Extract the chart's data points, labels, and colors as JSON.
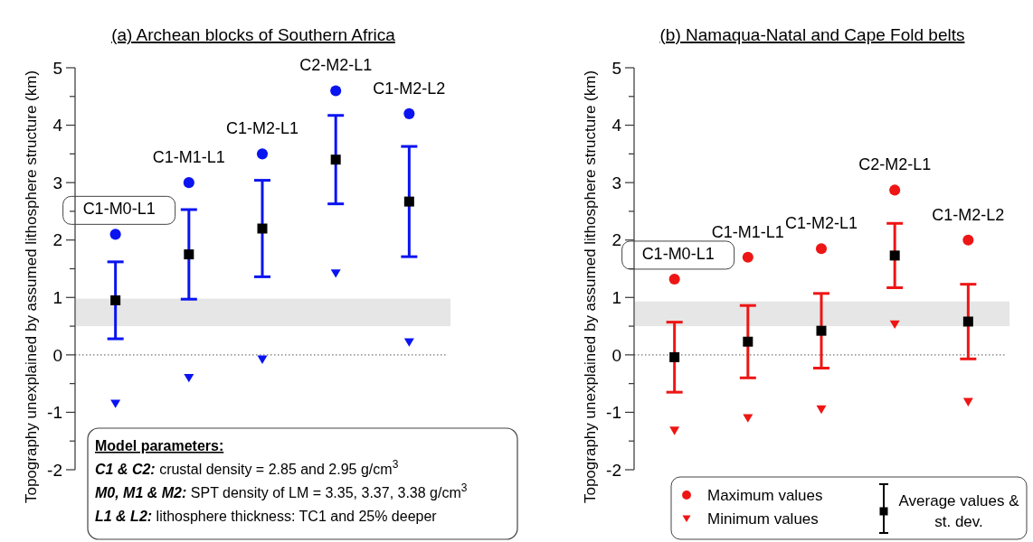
{
  "chart_data": [
    {
      "type": "scatter",
      "title": "(a)  Archean blocks of Southern Africa",
      "ylabel": "Topography unexplained by assumed lithosphere structure (km)",
      "categories": [
        "C1-M0-L1",
        "C1-M1-L1",
        "C1-M2-L1",
        "C2-M2-L1",
        "C1-M2-L2"
      ],
      "series": [
        {
          "color": "#0a14f0",
          "marker": "circle",
          "values": [
            2.1,
            3.0,
            3.5,
            4.6,
            4.2
          ]
        },
        {
          "color": "#0a14f0",
          "marker": "triangle",
          "values": [
            -0.85,
            -0.4,
            -0.08,
            1.42,
            0.22
          ]
        },
        {
          "color": "#000000",
          "marker": "square",
          "values": [
            0.95,
            1.75,
            2.2,
            3.4,
            2.67
          ],
          "errors": [
            0.67,
            0.78,
            0.84,
            0.77,
            0.96
          ]
        }
      ],
      "ylim": [
        -2,
        5
      ],
      "yticks": [
        -2,
        {
          "value": -1.5,
          "label": null
        },
        -1,
        {
          "value": -0.5,
          "label": null
        },
        0,
        {
          "value": 0.5,
          "label": null
        },
        1,
        {
          "value": 1.5,
          "label": null
        },
        2,
        {
          "value": 2.5,
          "label": null
        },
        3,
        {
          "value": 3.5,
          "label": null
        },
        4,
        {
          "value": 4.5,
          "label": null
        },
        5
      ],
      "tick_labels": "y",
      "ref_lines": [
        {
          "axis": "y",
          "value": 0,
          "line_style": "dotted",
          "color": "#777777"
        }
      ],
      "bands": [
        {
          "axis": "y",
          "from": 0.5,
          "to": 0.98,
          "color": "#e6e6e6"
        }
      ],
      "annotations": [
        "Model parameters:",
        "C1 & C2: crustal density = 2.85 and 2.95 g/cm$^{3}$",
        "M0, M1 & M2: SPT density of LM = 3.35, 3.37, 3.38 g/cm$^{3}$",
        "L1 & L2: lithosphere thickness: TC1 and 25% deeper"
      ]
    },
    {
      "type": "scatter",
      "title": "(b)  Namaqua-Natal and Cape Fold belts",
      "ylabel": "Topography unexplained by assumed lithosphere structure (km)",
      "categories": [
        "C1-M0-L1",
        "C1-M1-L1",
        "C1-M2-L1",
        "C2-M2-L1",
        "C1-M2-L2"
      ],
      "series": [
        {
          "name": "Maximum values",
          "color": "#ee1515",
          "marker": "circle",
          "values": [
            1.32,
            1.7,
            1.85,
            2.87,
            2.0
          ]
        },
        {
          "name": "Minimum values",
          "color": "#ee1515",
          "marker": "triangle",
          "values": [
            -1.32,
            -1.1,
            -0.95,
            0.53,
            -0.82
          ]
        },
        {
          "name": "Average values & st. dev.",
          "color": "#000000",
          "marker": "square",
          "values": [
            -0.04,
            0.23,
            0.42,
            1.73,
            0.58
          ],
          "errors": [
            0.61,
            0.63,
            0.65,
            0.56,
            0.65
          ]
        }
      ],
      "ylim": [
        -2,
        5
      ],
      "yticks": [
        -2,
        {
          "value": -1.5,
          "label": null
        },
        -1,
        {
          "value": -0.5,
          "label": null
        },
        0,
        {
          "value": 0.5,
          "label": null
        },
        1,
        {
          "value": 1.5,
          "label": null
        },
        2,
        {
          "value": 2.5,
          "label": null
        },
        3,
        {
          "value": 3.5,
          "label": null
        },
        4,
        {
          "value": 4.5,
          "label": null
        },
        5
      ],
      "tick_labels": "y",
      "legend": "bottom",
      "ref_lines": [
        {
          "axis": "y",
          "value": 0,
          "line_style": "dotted",
          "color": "#777777"
        }
      ],
      "bands": [
        {
          "axis": "y",
          "from": 0.5,
          "to": 0.93,
          "color": "#e6e6e6"
        }
      ]
    }
  ]
}
